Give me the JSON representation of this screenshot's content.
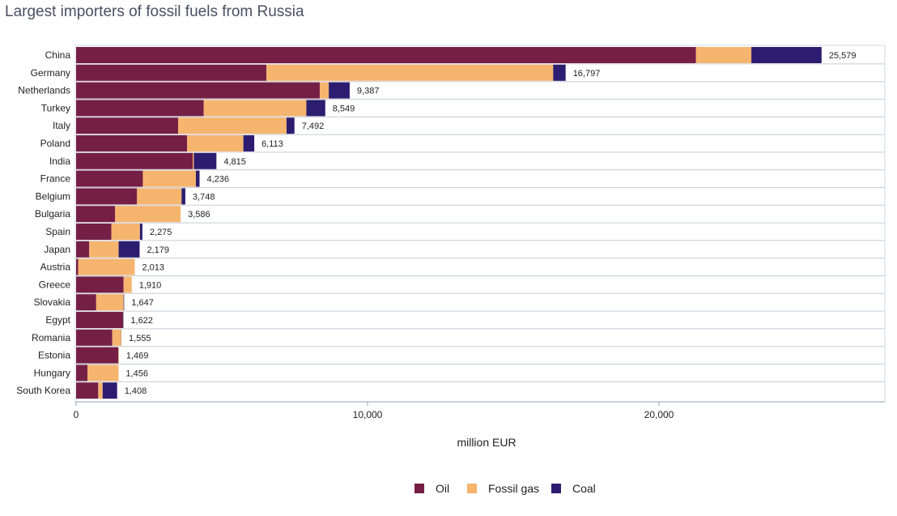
{
  "chart_data": {
    "type": "bar",
    "orientation": "horizontal",
    "stacked": true,
    "title": "Largest importers of fossil fuels from Russia",
    "xlabel": "million EUR",
    "ylabel": "",
    "xlim": [
      0,
      28000
    ],
    "x_ticks": [
      0,
      10000,
      20000
    ],
    "x_tick_labels": [
      "0",
      "10,000",
      "20,000"
    ],
    "grid": "horizontal lines between rows",
    "legend_position": "bottom-center",
    "categories": [
      "China",
      "Germany",
      "Netherlands",
      "Turkey",
      "Italy",
      "Poland",
      "India",
      "France",
      "Belgium",
      "Bulgaria",
      "Spain",
      "Japan",
      "Austria",
      "Greece",
      "Slovakia",
      "Egypt",
      "Romania",
      "Estonia",
      "Hungary",
      "South Korea"
    ],
    "series": [
      {
        "name": "Oil",
        "color": "#761f45",
        "values": [
          21270,
          6530,
          8360,
          4380,
          3500,
          3810,
          4000,
          2290,
          2090,
          1340,
          1210,
          450,
          70,
          1630,
          690,
          1610,
          1240,
          1450,
          390,
          760
        ]
      },
      {
        "name": "Fossil gas",
        "color": "#f5b56f",
        "values": [
          1900,
          9840,
          310,
          3520,
          3720,
          1930,
          40,
          1820,
          1530,
          2246,
          980,
          1010,
          1943,
          280,
          940,
          0,
          310,
          19,
          1066,
          150
        ]
      },
      {
        "name": "Coal",
        "color": "#2c1d70",
        "values": [
          2409,
          427,
          717,
          649,
          272,
          373,
          775,
          126,
          128,
          0,
          85,
          719,
          0,
          0,
          17,
          12,
          5,
          0,
          0,
          498
        ]
      }
    ],
    "totals": [
      25579,
      16797,
      9387,
      8549,
      7492,
      6113,
      4815,
      4236,
      3748,
      3586,
      2275,
      2179,
      2013,
      1910,
      1647,
      1622,
      1555,
      1469,
      1456,
      1408
    ],
    "total_labels": [
      "25,579",
      "16,797",
      "9,387",
      "8,549",
      "7,492",
      "6,113",
      "4,815",
      "4,236",
      "3,748",
      "3,586",
      "2,275",
      "2,179",
      "2,013",
      "1,910",
      "1,647",
      "1,622",
      "1,555",
      "1,469",
      "1,456",
      "1,408"
    ]
  }
}
